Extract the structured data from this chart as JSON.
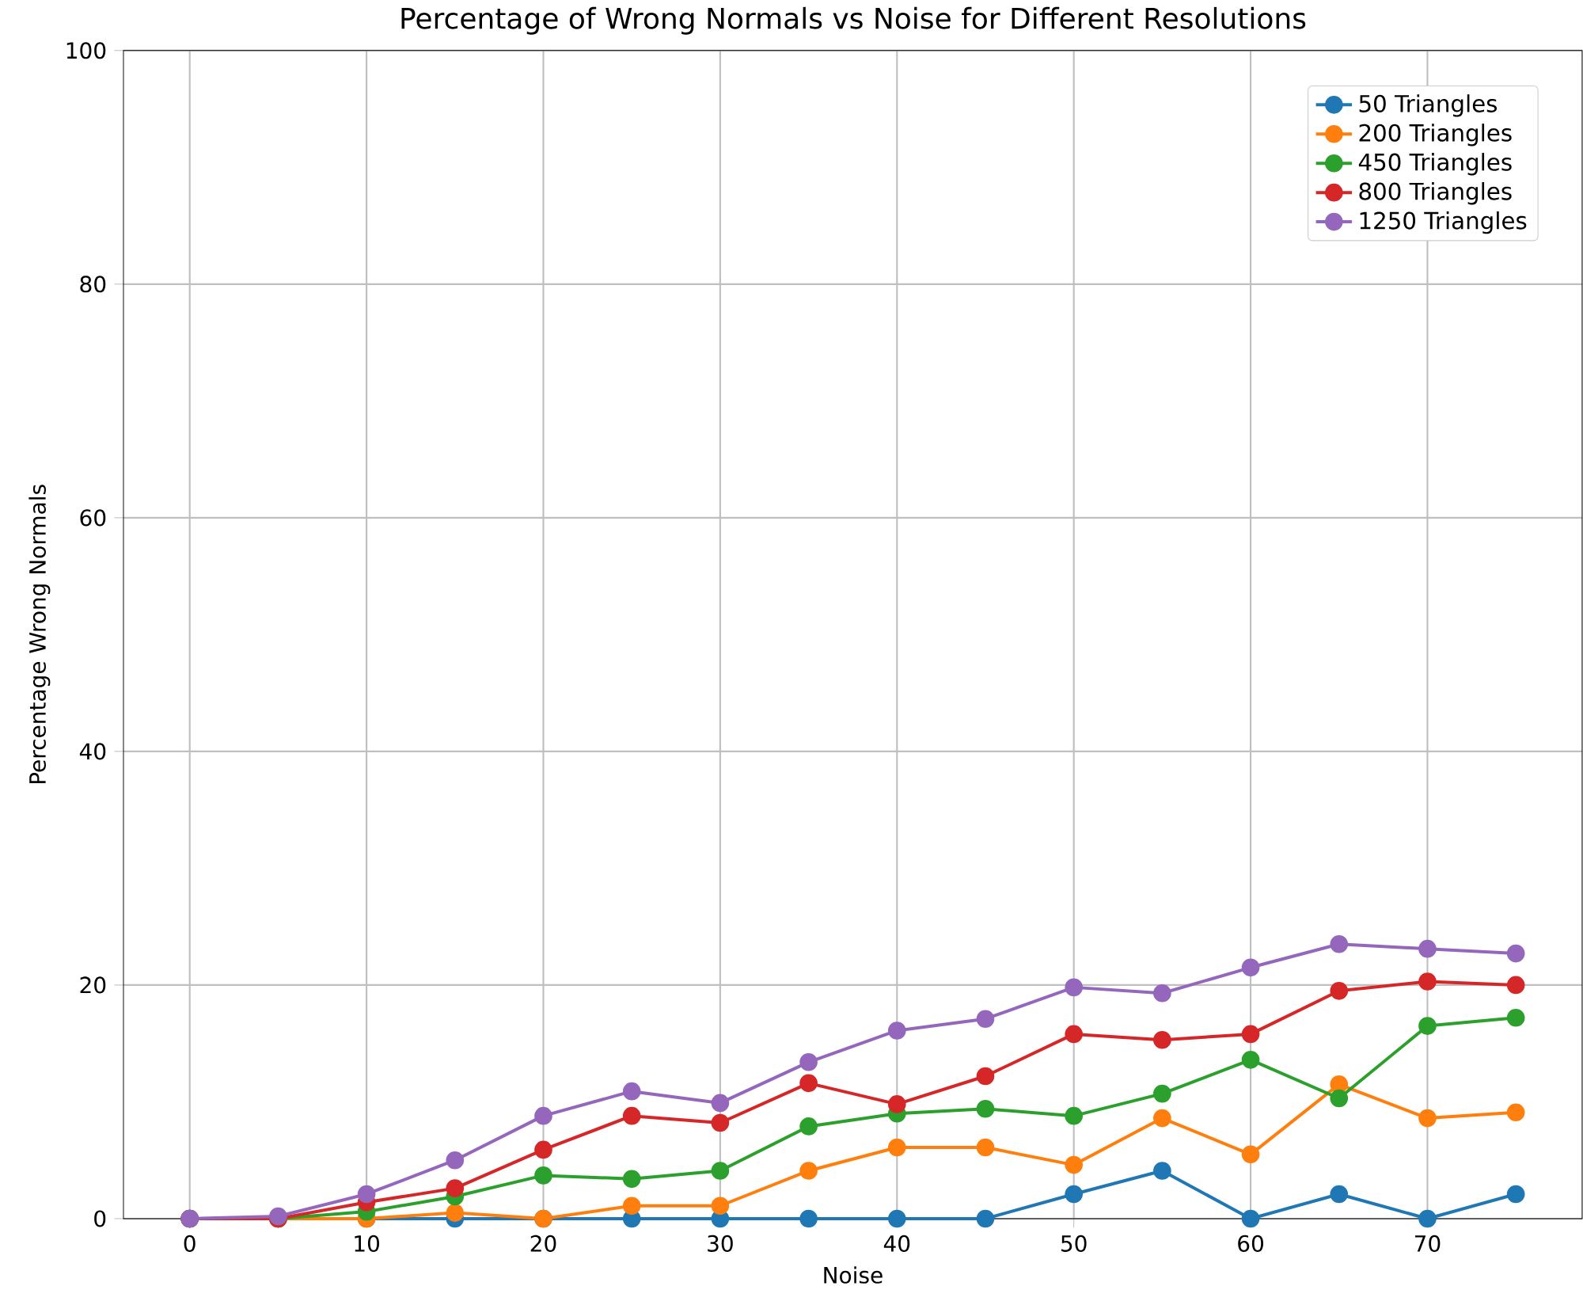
{
  "chart_data": {
    "type": "line",
    "title": "Percentage of Wrong Normals vs Noise for Different Resolutions",
    "xlabel": "Noise",
    "ylabel": "Percentage Wrong Normals",
    "x": [
      0,
      5,
      10,
      15,
      20,
      25,
      30,
      35,
      40,
      45,
      50,
      55,
      60,
      65,
      70,
      75
    ],
    "series": [
      {
        "name": "50 Triangles",
        "color": "#1f77b4",
        "values": [
          0,
          0,
          0,
          0,
          0,
          0,
          0,
          0,
          0,
          0,
          2.1,
          4.1,
          0,
          2.1,
          0,
          2.1
        ]
      },
      {
        "name": "200 Triangles",
        "color": "#ff7f0e",
        "values": [
          0,
          0,
          0,
          0.5,
          0,
          1.1,
          1.1,
          4.1,
          6.1,
          6.1,
          4.6,
          8.6,
          5.5,
          11.5,
          8.6,
          9.1
        ]
      },
      {
        "name": "450 Triangles",
        "color": "#2ca02c",
        "values": [
          0,
          0,
          0.6,
          1.9,
          3.7,
          3.4,
          4.1,
          7.9,
          9.0,
          9.4,
          8.8,
          10.7,
          13.6,
          10.3,
          16.5,
          17.2
        ]
      },
      {
        "name": "800 Triangles",
        "color": "#d62728",
        "values": [
          0,
          0,
          1.4,
          2.6,
          5.9,
          8.8,
          8.2,
          11.6,
          9.8,
          12.2,
          15.8,
          15.3,
          15.8,
          19.5,
          20.3,
          20.0
        ]
      },
      {
        "name": "1250 Triangles",
        "color": "#9467bd",
        "values": [
          0,
          0.2,
          2.1,
          5.0,
          8.8,
          10.9,
          9.9,
          13.4,
          16.1,
          17.1,
          19.8,
          19.3,
          21.5,
          23.5,
          23.1,
          22.7
        ]
      }
    ],
    "xlim": [
      -3.75,
      78.75
    ],
    "ylim": [
      0,
      100
    ],
    "xticks": [
      0,
      10,
      20,
      30,
      40,
      50,
      60,
      70
    ],
    "yticks": [
      0,
      20,
      40,
      60,
      80,
      100
    ],
    "grid": true,
    "legend": "top right",
    "marker": "circle",
    "line_style": "solid"
  }
}
